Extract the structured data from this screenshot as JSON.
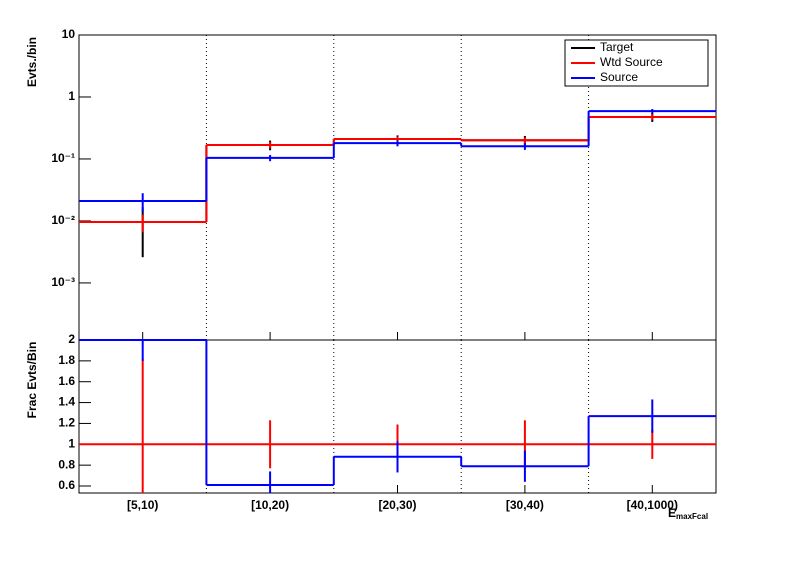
{
  "chart_data": [
    {
      "type": "histogram",
      "y_label": "Evts./bin",
      "log_y": true,
      "categories": [
        "[5,10)",
        "[10,20)",
        "[20,30)",
        "[30,40)",
        "[40,1000)"
      ],
      "ylim": [
        0.00012,
        10
      ],
      "yticks": [
        {
          "value": 10,
          "label": "10"
        },
        {
          "value": 1,
          "label": "1"
        },
        {
          "value": 0.1,
          "label": "10⁻¹"
        },
        {
          "value": 0.01,
          "label": "10⁻²"
        },
        {
          "value": 0.001,
          "label": "10⁻³"
        }
      ],
      "grid_x": true,
      "legend": "top-right",
      "series": [
        {
          "name": "Target",
          "color": "#000000",
          "values": [
            0.0096,
            0.168,
            0.21,
            0.2,
            0.476
          ],
          "errors": [
            0.007,
            0.03,
            0.03,
            0.035,
            0.08
          ]
        },
        {
          "name": "Wtd Source",
          "color": "#ff0000",
          "values": [
            0.0096,
            0.168,
            0.21,
            0.2,
            0.476
          ],
          "errors": [
            0.003,
            0.02,
            0.02,
            0.025,
            0.05
          ]
        },
        {
          "name": "Source",
          "color": "#0000ff",
          "values": [
            0.021,
            0.104,
            0.18,
            0.16,
            0.59
          ],
          "errors": [
            0.007,
            0.012,
            0.02,
            0.02,
            0.05
          ]
        }
      ]
    },
    {
      "type": "histogram",
      "y_label": "Frac Evts/Bin",
      "log_y": false,
      "x_label": "E",
      "x_label_sub": "maxFcal",
      "categories": [
        "[5,10)",
        "[10,20)",
        "[20,30)",
        "[30,40)",
        "[40,1000)"
      ],
      "ylim": [
        0.533,
        2
      ],
      "yticks": [
        0.6,
        0.8,
        1,
        1.2,
        1.4,
        1.6,
        1.8,
        2
      ],
      "grid_x": true,
      "series": [
        {
          "name": "Wtd Source",
          "color": "#ff0000",
          "values": [
            1,
            1,
            1,
            1,
            1
          ],
          "errors": [
            0.82,
            0.23,
            0.19,
            0.23,
            0.14
          ]
        },
        {
          "name": "Source",
          "color": "#0000ff",
          "values": [
            2,
            0.61,
            0.88,
            0.79,
            1.27
          ],
          "errors": [
            0.2,
            0.13,
            0.15,
            0.15,
            0.16
          ]
        }
      ]
    }
  ]
}
